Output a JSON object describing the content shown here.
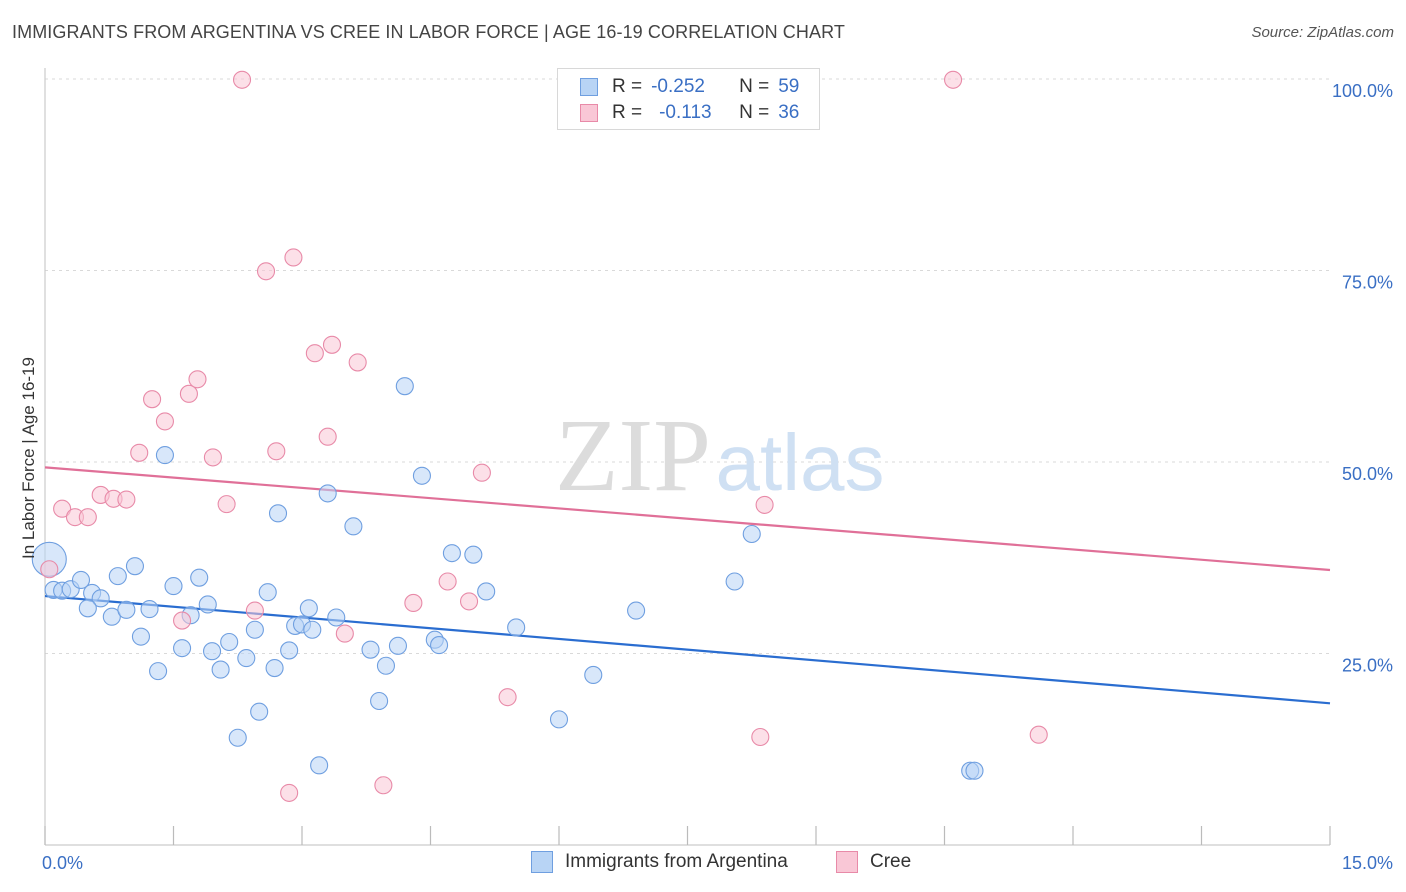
{
  "header": {
    "title": "IMMIGRANTS FROM ARGENTINA VS CREE IN LABOR FORCE | AGE 16-19 CORRELATION CHART",
    "source": "Source: ZipAtlas.com"
  },
  "watermark": {
    "zip": "ZIP",
    "atlas": "atlas"
  },
  "legend_top": {
    "rows": [
      {
        "r_label": "R =",
        "r_value": "-0.252",
        "n_label": "N =",
        "n_value": "59",
        "color": "#6f9fe0"
      },
      {
        "r_label": "R =",
        "r_value": "-0.113",
        "n_label": "N =",
        "n_value": "36",
        "color": "#e88aa8"
      }
    ]
  },
  "chart_data": {
    "type": "scatter",
    "title": "IMMIGRANTS FROM ARGENTINA VS CREE IN LABOR FORCE | AGE 16-19 CORRELATION CHART",
    "xlabel": "",
    "ylabel": "In Labor Force | Age 16-19",
    "xlim": [
      0,
      15
    ],
    "ylim": [
      0,
      100
    ],
    "x_tick_labels": [
      "0.0%",
      "15.0%"
    ],
    "y_tick_labels": [
      "25.0%",
      "50.0%",
      "75.0%",
      "100.0%"
    ],
    "y_ticks": [
      25,
      50,
      75,
      100
    ],
    "grid": true,
    "legend_position": "bottom",
    "series": [
      {
        "name": "Immigrants from Argentina",
        "color": "#6f9fe0",
        "fill": "#b8d4f5",
        "trend": {
          "x": [
            0,
            15
          ],
          "y": [
            32.5,
            18.5
          ],
          "color": "#2a6dd0"
        },
        "points": [
          {
            "x": 0.05,
            "y": 37.3,
            "big": true
          },
          {
            "x": 0.1,
            "y": 33.3
          },
          {
            "x": 0.2,
            "y": 33.2
          },
          {
            "x": 0.3,
            "y": 33.4
          },
          {
            "x": 0.42,
            "y": 34.6
          },
          {
            "x": 0.55,
            "y": 32.9
          },
          {
            "x": 0.65,
            "y": 32.2
          },
          {
            "x": 0.5,
            "y": 30.9
          },
          {
            "x": 0.78,
            "y": 29.8
          },
          {
            "x": 0.85,
            "y": 35.1
          },
          {
            "x": 0.95,
            "y": 30.7
          },
          {
            "x": 1.05,
            "y": 36.4
          },
          {
            "x": 1.12,
            "y": 27.2
          },
          {
            "x": 1.22,
            "y": 30.8
          },
          {
            "x": 1.32,
            "y": 22.7
          },
          {
            "x": 1.4,
            "y": 50.9
          },
          {
            "x": 1.5,
            "y": 33.8
          },
          {
            "x": 1.6,
            "y": 25.7
          },
          {
            "x": 1.7,
            "y": 30.0
          },
          {
            "x": 1.8,
            "y": 34.9
          },
          {
            "x": 1.9,
            "y": 31.4
          },
          {
            "x": 1.95,
            "y": 25.3
          },
          {
            "x": 2.05,
            "y": 22.9
          },
          {
            "x": 2.15,
            "y": 26.5
          },
          {
            "x": 2.25,
            "y": 14.0
          },
          {
            "x": 2.35,
            "y": 24.4
          },
          {
            "x": 2.45,
            "y": 28.1
          },
          {
            "x": 2.5,
            "y": 17.4
          },
          {
            "x": 2.6,
            "y": 33.0
          },
          {
            "x": 2.68,
            "y": 23.1
          },
          {
            "x": 2.72,
            "y": 43.3
          },
          {
            "x": 2.85,
            "y": 25.4
          },
          {
            "x": 2.92,
            "y": 28.6
          },
          {
            "x": 3.0,
            "y": 28.8
          },
          {
            "x": 3.08,
            "y": 30.9
          },
          {
            "x": 3.12,
            "y": 28.1
          },
          {
            "x": 3.2,
            "y": 10.4
          },
          {
            "x": 3.3,
            "y": 45.9
          },
          {
            "x": 3.4,
            "y": 29.7
          },
          {
            "x": 3.6,
            "y": 41.6
          },
          {
            "x": 3.8,
            "y": 25.5
          },
          {
            "x": 3.9,
            "y": 18.8
          },
          {
            "x": 3.98,
            "y": 23.4
          },
          {
            "x": 4.12,
            "y": 26.0
          },
          {
            "x": 4.2,
            "y": 59.9
          },
          {
            "x": 4.4,
            "y": 48.2
          },
          {
            "x": 4.55,
            "y": 26.8
          },
          {
            "x": 4.6,
            "y": 26.1
          },
          {
            "x": 4.75,
            "y": 38.1
          },
          {
            "x": 5.0,
            "y": 37.9
          },
          {
            "x": 5.15,
            "y": 33.1
          },
          {
            "x": 5.5,
            "y": 28.4
          },
          {
            "x": 6.0,
            "y": 16.4
          },
          {
            "x": 6.4,
            "y": 22.2
          },
          {
            "x": 6.9,
            "y": 30.6
          },
          {
            "x": 8.05,
            "y": 34.4
          },
          {
            "x": 8.25,
            "y": 40.6
          },
          {
            "x": 10.8,
            "y": 9.7
          },
          {
            "x": 10.85,
            "y": 9.7
          }
        ]
      },
      {
        "name": "Cree",
        "color": "#e88aa8",
        "fill": "#f9c7d6",
        "trend": {
          "x": [
            0,
            15
          ],
          "y": [
            49.3,
            35.9
          ],
          "color": "#e07098"
        },
        "points": [
          {
            "x": 0.05,
            "y": 36.0
          },
          {
            "x": 0.2,
            "y": 43.9
          },
          {
            "x": 0.35,
            "y": 42.8
          },
          {
            "x": 0.5,
            "y": 42.8
          },
          {
            "x": 0.65,
            "y": 45.7
          },
          {
            "x": 0.8,
            "y": 45.2
          },
          {
            "x": 0.95,
            "y": 45.1
          },
          {
            "x": 1.1,
            "y": 51.2
          },
          {
            "x": 1.25,
            "y": 58.2
          },
          {
            "x": 1.4,
            "y": 55.3
          },
          {
            "x": 1.6,
            "y": 29.3
          },
          {
            "x": 1.68,
            "y": 58.9
          },
          {
            "x": 1.78,
            "y": 60.8
          },
          {
            "x": 1.96,
            "y": 50.6
          },
          {
            "x": 2.12,
            "y": 44.5
          },
          {
            "x": 2.3,
            "y": 99.9
          },
          {
            "x": 2.45,
            "y": 30.6
          },
          {
            "x": 2.58,
            "y": 74.9
          },
          {
            "x": 2.7,
            "y": 51.4
          },
          {
            "x": 2.85,
            "y": 6.8
          },
          {
            "x": 2.9,
            "y": 76.7
          },
          {
            "x": 3.15,
            "y": 64.2
          },
          {
            "x": 3.3,
            "y": 53.3
          },
          {
            "x": 3.35,
            "y": 65.3
          },
          {
            "x": 3.5,
            "y": 27.6
          },
          {
            "x": 3.65,
            "y": 63.0
          },
          {
            "x": 3.95,
            "y": 7.8
          },
          {
            "x": 4.3,
            "y": 31.6
          },
          {
            "x": 4.7,
            "y": 34.4
          },
          {
            "x": 4.95,
            "y": 31.8
          },
          {
            "x": 5.1,
            "y": 48.6
          },
          {
            "x": 5.4,
            "y": 19.3
          },
          {
            "x": 8.35,
            "y": 14.1
          },
          {
            "x": 8.4,
            "y": 44.4
          },
          {
            "x": 10.6,
            "y": 99.9
          },
          {
            "x": 11.6,
            "y": 14.4
          }
        ]
      }
    ]
  },
  "bottom_legend": {
    "items": [
      {
        "label": "Immigrants from Argentina"
      },
      {
        "label": "Cree"
      }
    ]
  }
}
